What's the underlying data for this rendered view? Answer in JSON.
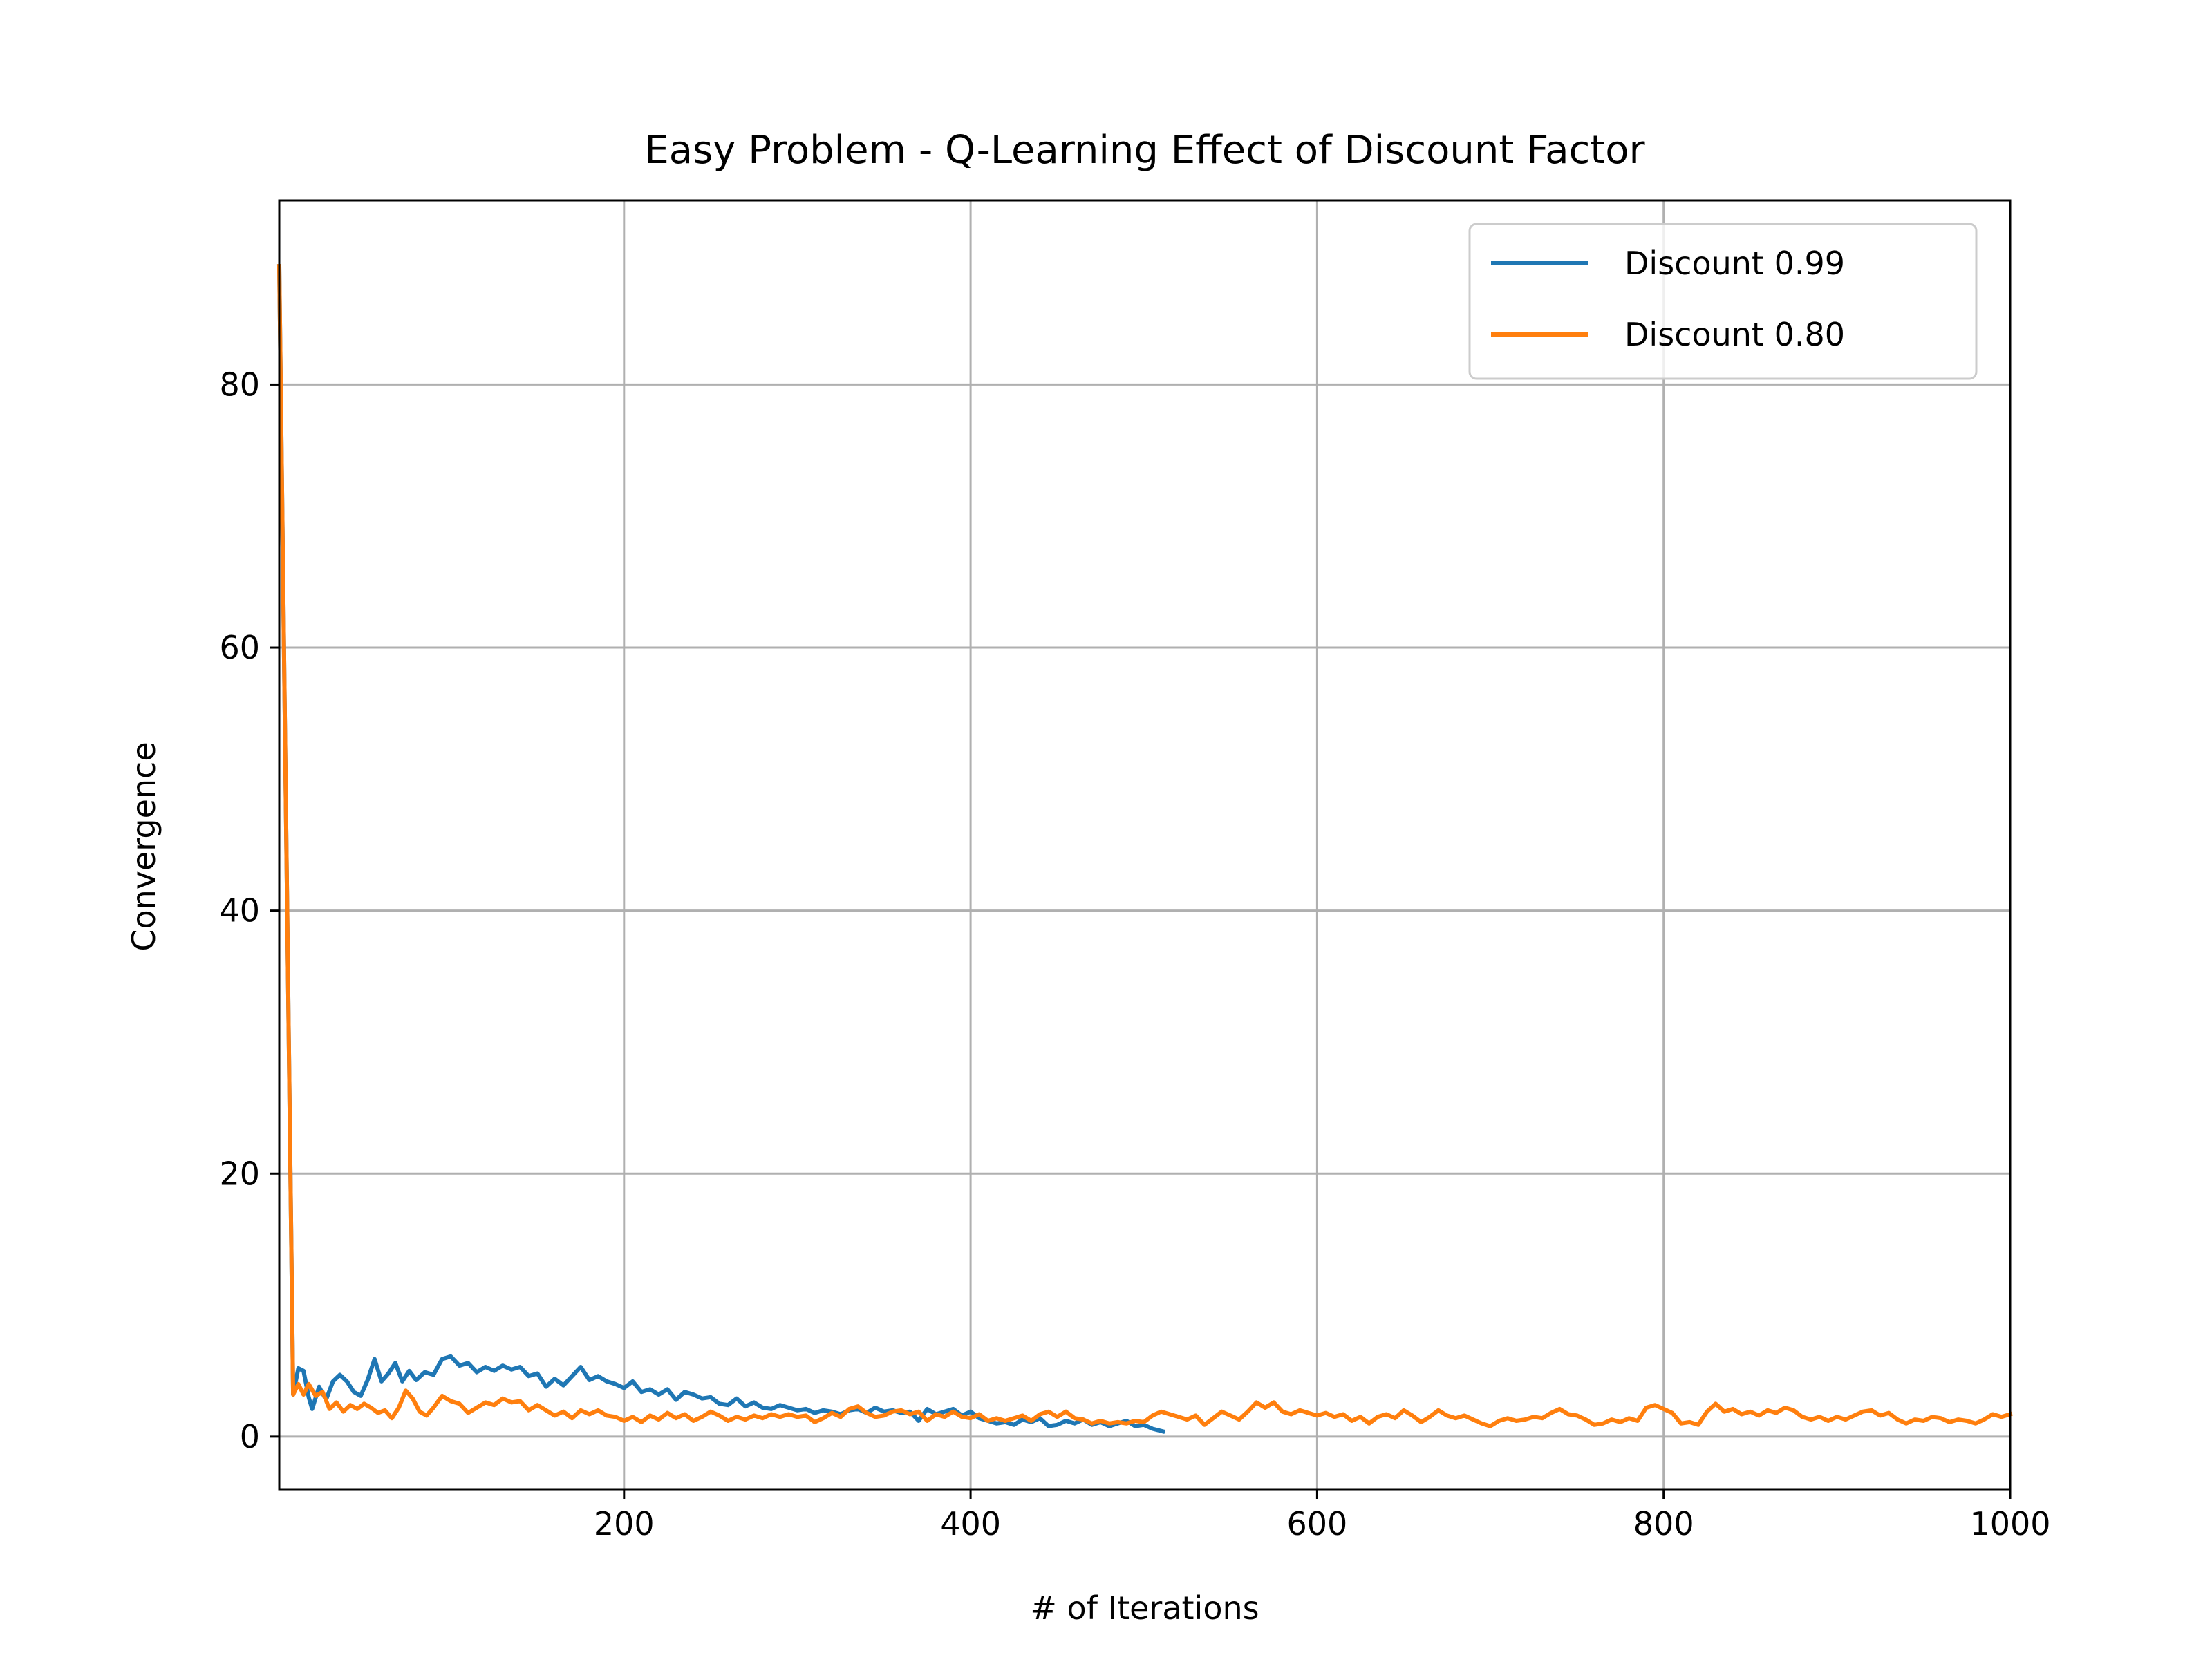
{
  "chart_data": {
    "type": "line",
    "title": "Easy Problem - Q-Learning Effect of Discount Factor",
    "xlabel": "# of Iterations",
    "ylabel": "Convergence",
    "xlim": [
      1,
      1000
    ],
    "ylim": [
      -4,
      94
    ],
    "x_ticks": [
      200,
      400,
      600,
      800,
      1000
    ],
    "y_ticks": [
      0,
      20,
      40,
      60,
      80
    ],
    "grid": true,
    "legend_position": "top-right",
    "series": [
      {
        "name": "Discount 0.99",
        "color": "#1f77b4",
        "points": [
          [
            1,
            89
          ],
          [
            9,
            3.2
          ],
          [
            12,
            5.2
          ],
          [
            15,
            5.0
          ],
          [
            18,
            3.0
          ],
          [
            20,
            2.1
          ],
          [
            24,
            3.8
          ],
          [
            28,
            2.8
          ],
          [
            32,
            4.2
          ],
          [
            36,
            4.7
          ],
          [
            40,
            4.2
          ],
          [
            44,
            3.4
          ],
          [
            48,
            3.1
          ],
          [
            52,
            4.3
          ],
          [
            56,
            5.9
          ],
          [
            60,
            4.2
          ],
          [
            64,
            4.8
          ],
          [
            68,
            5.6
          ],
          [
            72,
            4.2
          ],
          [
            76,
            5.0
          ],
          [
            80,
            4.3
          ],
          [
            85,
            4.9
          ],
          [
            90,
            4.7
          ],
          [
            95,
            5.9
          ],
          [
            100,
            6.1
          ],
          [
            105,
            5.4
          ],
          [
            110,
            5.6
          ],
          [
            115,
            4.9
          ],
          [
            120,
            5.3
          ],
          [
            125,
            5.0
          ],
          [
            130,
            5.4
          ],
          [
            135,
            5.1
          ],
          [
            140,
            5.3
          ],
          [
            145,
            4.6
          ],
          [
            150,
            4.8
          ],
          [
            155,
            3.8
          ],
          [
            160,
            4.4
          ],
          [
            165,
            3.9
          ],
          [
            170,
            4.6
          ],
          [
            175,
            5.3
          ],
          [
            180,
            4.3
          ],
          [
            185,
            4.6
          ],
          [
            190,
            4.2
          ],
          [
            195,
            4.0
          ],
          [
            200,
            3.7
          ],
          [
            205,
            4.2
          ],
          [
            210,
            3.4
          ],
          [
            215,
            3.6
          ],
          [
            220,
            3.2
          ],
          [
            225,
            3.6
          ],
          [
            230,
            2.8
          ],
          [
            235,
            3.4
          ],
          [
            240,
            3.2
          ],
          [
            245,
            2.9
          ],
          [
            250,
            3.0
          ],
          [
            255,
            2.5
          ],
          [
            260,
            2.4
          ],
          [
            265,
            2.9
          ],
          [
            270,
            2.3
          ],
          [
            275,
            2.6
          ],
          [
            280,
            2.2
          ],
          [
            285,
            2.1
          ],
          [
            290,
            2.4
          ],
          [
            295,
            2.2
          ],
          [
            300,
            2.0
          ],
          [
            305,
            2.1
          ],
          [
            310,
            1.8
          ],
          [
            315,
            2.0
          ],
          [
            320,
            1.9
          ],
          [
            325,
            1.7
          ],
          [
            330,
            2.0
          ],
          [
            335,
            2.1
          ],
          [
            340,
            1.8
          ],
          [
            345,
            2.2
          ],
          [
            350,
            1.9
          ],
          [
            355,
            2.0
          ],
          [
            360,
            1.8
          ],
          [
            365,
            1.9
          ],
          [
            370,
            1.2
          ],
          [
            375,
            2.1
          ],
          [
            380,
            1.7
          ],
          [
            385,
            1.9
          ],
          [
            390,
            2.1
          ],
          [
            395,
            1.6
          ],
          [
            400,
            1.9
          ],
          [
            405,
            1.4
          ],
          [
            410,
            1.2
          ],
          [
            415,
            1.0
          ],
          [
            420,
            1.1
          ],
          [
            425,
            0.9
          ],
          [
            430,
            1.3
          ],
          [
            435,
            1.1
          ],
          [
            440,
            1.4
          ],
          [
            445,
            0.8
          ],
          [
            450,
            0.9
          ],
          [
            455,
            1.2
          ],
          [
            460,
            1.0
          ],
          [
            465,
            1.3
          ],
          [
            470,
            0.9
          ],
          [
            475,
            1.1
          ],
          [
            480,
            0.8
          ],
          [
            485,
            1.0
          ],
          [
            490,
            1.2
          ],
          [
            495,
            0.8
          ],
          [
            500,
            0.9
          ],
          [
            505,
            0.6
          ],
          [
            511,
            0.4
          ]
        ]
      },
      {
        "name": "Discount 0.80",
        "color": "#ff7f0e",
        "points": [
          [
            1,
            89
          ],
          [
            9,
            3.2
          ],
          [
            12,
            4.0
          ],
          [
            15,
            3.2
          ],
          [
            18,
            4.0
          ],
          [
            22,
            3.1
          ],
          [
            26,
            3.4
          ],
          [
            30,
            2.1
          ],
          [
            34,
            2.6
          ],
          [
            38,
            1.9
          ],
          [
            42,
            2.4
          ],
          [
            46,
            2.1
          ],
          [
            50,
            2.5
          ],
          [
            54,
            2.2
          ],
          [
            58,
            1.8
          ],
          [
            62,
            2.0
          ],
          [
            66,
            1.4
          ],
          [
            70,
            2.2
          ],
          [
            74,
            3.5
          ],
          [
            78,
            2.9
          ],
          [
            82,
            1.9
          ],
          [
            86,
            1.6
          ],
          [
            90,
            2.2
          ],
          [
            95,
            3.1
          ],
          [
            100,
            2.7
          ],
          [
            105,
            2.5
          ],
          [
            110,
            1.8
          ],
          [
            115,
            2.2
          ],
          [
            120,
            2.6
          ],
          [
            125,
            2.4
          ],
          [
            130,
            2.9
          ],
          [
            135,
            2.6
          ],
          [
            140,
            2.7
          ],
          [
            145,
            2.0
          ],
          [
            150,
            2.4
          ],
          [
            155,
            2.0
          ],
          [
            160,
            1.6
          ],
          [
            165,
            1.9
          ],
          [
            170,
            1.4
          ],
          [
            175,
            2.0
          ],
          [
            180,
            1.7
          ],
          [
            185,
            2.0
          ],
          [
            190,
            1.6
          ],
          [
            195,
            1.5
          ],
          [
            200,
            1.2
          ],
          [
            205,
            1.5
          ],
          [
            210,
            1.1
          ],
          [
            215,
            1.6
          ],
          [
            220,
            1.3
          ],
          [
            225,
            1.8
          ],
          [
            230,
            1.4
          ],
          [
            235,
            1.7
          ],
          [
            240,
            1.2
          ],
          [
            245,
            1.5
          ],
          [
            250,
            1.9
          ],
          [
            255,
            1.6
          ],
          [
            260,
            1.2
          ],
          [
            265,
            1.5
          ],
          [
            270,
            1.3
          ],
          [
            275,
            1.6
          ],
          [
            280,
            1.4
          ],
          [
            285,
            1.7
          ],
          [
            290,
            1.5
          ],
          [
            295,
            1.7
          ],
          [
            300,
            1.5
          ],
          [
            305,
            1.6
          ],
          [
            310,
            1.1
          ],
          [
            315,
            1.4
          ],
          [
            320,
            1.8
          ],
          [
            325,
            1.5
          ],
          [
            330,
            2.1
          ],
          [
            335,
            2.3
          ],
          [
            340,
            1.8
          ],
          [
            345,
            1.5
          ],
          [
            350,
            1.6
          ],
          [
            355,
            1.9
          ],
          [
            360,
            2.0
          ],
          [
            365,
            1.7
          ],
          [
            370,
            1.9
          ],
          [
            375,
            1.2
          ],
          [
            380,
            1.7
          ],
          [
            385,
            1.5
          ],
          [
            390,
            1.9
          ],
          [
            395,
            1.5
          ],
          [
            400,
            1.4
          ],
          [
            405,
            1.7
          ],
          [
            410,
            1.2
          ],
          [
            415,
            1.4
          ],
          [
            420,
            1.2
          ],
          [
            425,
            1.4
          ],
          [
            430,
            1.6
          ],
          [
            435,
            1.2
          ],
          [
            440,
            1.7
          ],
          [
            445,
            1.9
          ],
          [
            450,
            1.5
          ],
          [
            455,
            1.9
          ],
          [
            460,
            1.4
          ],
          [
            465,
            1.3
          ],
          [
            470,
            1.0
          ],
          [
            475,
            1.2
          ],
          [
            480,
            1.0
          ],
          [
            485,
            1.1
          ],
          [
            490,
            1.0
          ],
          [
            495,
            1.2
          ],
          [
            500,
            1.1
          ],
          [
            505,
            1.6
          ],
          [
            510,
            1.9
          ],
          [
            515,
            1.7
          ],
          [
            520,
            1.5
          ],
          [
            525,
            1.3
          ],
          [
            530,
            1.6
          ],
          [
            535,
            0.9
          ],
          [
            540,
            1.4
          ],
          [
            545,
            1.9
          ],
          [
            550,
            1.6
          ],
          [
            555,
            1.3
          ],
          [
            560,
            1.9
          ],
          [
            565,
            2.6
          ],
          [
            570,
            2.2
          ],
          [
            575,
            2.6
          ],
          [
            580,
            1.9
          ],
          [
            585,
            1.7
          ],
          [
            590,
            2.0
          ],
          [
            595,
            1.8
          ],
          [
            600,
            1.6
          ],
          [
            605,
            1.8
          ],
          [
            610,
            1.5
          ],
          [
            615,
            1.7
          ],
          [
            620,
            1.2
          ],
          [
            625,
            1.5
          ],
          [
            630,
            1.0
          ],
          [
            635,
            1.5
          ],
          [
            640,
            1.7
          ],
          [
            645,
            1.4
          ],
          [
            650,
            2.0
          ],
          [
            655,
            1.6
          ],
          [
            660,
            1.1
          ],
          [
            665,
            1.5
          ],
          [
            670,
            2.0
          ],
          [
            675,
            1.6
          ],
          [
            680,
            1.4
          ],
          [
            685,
            1.6
          ],
          [
            690,
            1.3
          ],
          [
            695,
            1.0
          ],
          [
            700,
            0.8
          ],
          [
            705,
            1.2
          ],
          [
            710,
            1.4
          ],
          [
            715,
            1.2
          ],
          [
            720,
            1.3
          ],
          [
            725,
            1.5
          ],
          [
            730,
            1.4
          ],
          [
            735,
            1.8
          ],
          [
            740,
            2.1
          ],
          [
            745,
            1.7
          ],
          [
            750,
            1.6
          ],
          [
            755,
            1.3
          ],
          [
            760,
            0.9
          ],
          [
            765,
            1.0
          ],
          [
            770,
            1.3
          ],
          [
            775,
            1.1
          ],
          [
            780,
            1.4
          ],
          [
            785,
            1.2
          ],
          [
            790,
            2.2
          ],
          [
            795,
            2.4
          ],
          [
            800,
            2.1
          ],
          [
            805,
            1.8
          ],
          [
            810,
            1.0
          ],
          [
            815,
            1.1
          ],
          [
            820,
            0.9
          ],
          [
            825,
            1.9
          ],
          [
            830,
            2.5
          ],
          [
            835,
            1.9
          ],
          [
            840,
            2.1
          ],
          [
            845,
            1.7
          ],
          [
            850,
            1.9
          ],
          [
            855,
            1.6
          ],
          [
            860,
            2.0
          ],
          [
            865,
            1.8
          ],
          [
            870,
            2.2
          ],
          [
            875,
            2.0
          ],
          [
            880,
            1.5
          ],
          [
            885,
            1.3
          ],
          [
            890,
            1.5
          ],
          [
            895,
            1.2
          ],
          [
            900,
            1.5
          ],
          [
            905,
            1.3
          ],
          [
            910,
            1.6
          ],
          [
            915,
            1.9
          ],
          [
            920,
            2.0
          ],
          [
            925,
            1.6
          ],
          [
            930,
            1.8
          ],
          [
            935,
            1.3
          ],
          [
            940,
            1.0
          ],
          [
            945,
            1.3
          ],
          [
            950,
            1.2
          ],
          [
            955,
            1.5
          ],
          [
            960,
            1.4
          ],
          [
            965,
            1.1
          ],
          [
            970,
            1.3
          ],
          [
            975,
            1.2
          ],
          [
            980,
            1.0
          ],
          [
            985,
            1.3
          ],
          [
            990,
            1.7
          ],
          [
            995,
            1.5
          ],
          [
            1000,
            1.7
          ]
        ]
      }
    ]
  }
}
